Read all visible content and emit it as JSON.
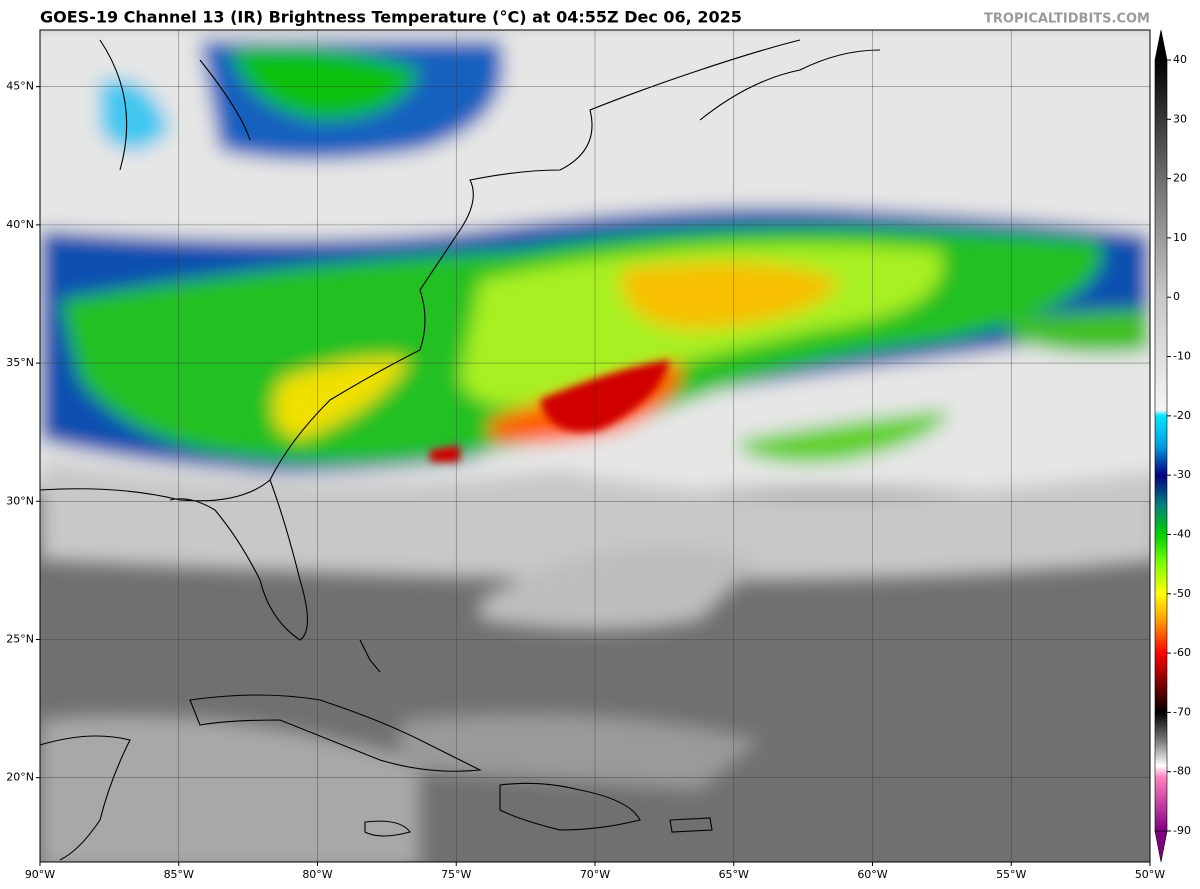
{
  "title": "GOES-19 Channel 13 (IR) Brightness Temperature (°C) at 04:55Z Dec 06, 2025",
  "credit": "TROPICALTIDBITS.COM",
  "map": {
    "lon_range": [
      -90,
      -50
    ],
    "lat_range": [
      16.95,
      47.05
    ],
    "lon_ticks": [
      {
        "value": -90,
        "label": "90°W"
      },
      {
        "value": -85,
        "label": "85°W"
      },
      {
        "value": -80,
        "label": "80°W"
      },
      {
        "value": -75,
        "label": "75°W"
      },
      {
        "value": -70,
        "label": "70°W"
      },
      {
        "value": -65,
        "label": "65°W"
      },
      {
        "value": -60,
        "label": "60°W"
      },
      {
        "value": -55,
        "label": "55°W"
      },
      {
        "value": -50,
        "label": "50°W"
      }
    ],
    "lat_ticks": [
      {
        "value": 20,
        "label": "20°N"
      },
      {
        "value": 25,
        "label": "25°N"
      },
      {
        "value": 30,
        "label": "30°N"
      },
      {
        "value": 35,
        "label": "35°N"
      },
      {
        "value": 40,
        "label": "40°N"
      },
      {
        "value": 45,
        "label": "45°N"
      }
    ],
    "grid": true
  },
  "colorbar": {
    "range": [
      -90,
      40
    ],
    "ticks": [
      40,
      30,
      20,
      10,
      0,
      -10,
      -20,
      -30,
      -40,
      -50,
      -60,
      -70,
      -80,
      -90
    ],
    "colormap": [
      {
        "value": 40,
        "color": "#000000"
      },
      {
        "value": 20,
        "color": "#6e6e6e"
      },
      {
        "value": 0,
        "color": "#c8c8c8"
      },
      {
        "value": -19,
        "color": "#f4f4f4"
      },
      {
        "value": -20,
        "color": "#00e5ff"
      },
      {
        "value": -25,
        "color": "#00a0e0"
      },
      {
        "value": -30,
        "color": "#000080"
      },
      {
        "value": -35,
        "color": "#008080"
      },
      {
        "value": -40,
        "color": "#00d000"
      },
      {
        "value": -45,
        "color": "#80ff00"
      },
      {
        "value": -50,
        "color": "#ffff00"
      },
      {
        "value": -55,
        "color": "#ff9000"
      },
      {
        "value": -60,
        "color": "#ff0000"
      },
      {
        "value": -65,
        "color": "#800000"
      },
      {
        "value": -70,
        "color": "#000000"
      },
      {
        "value": -75,
        "color": "#808080"
      },
      {
        "value": -79,
        "color": "#ffffff"
      },
      {
        "value": -81,
        "color": "#ff80c0"
      },
      {
        "value": -90,
        "color": "#800080"
      }
    ]
  }
}
